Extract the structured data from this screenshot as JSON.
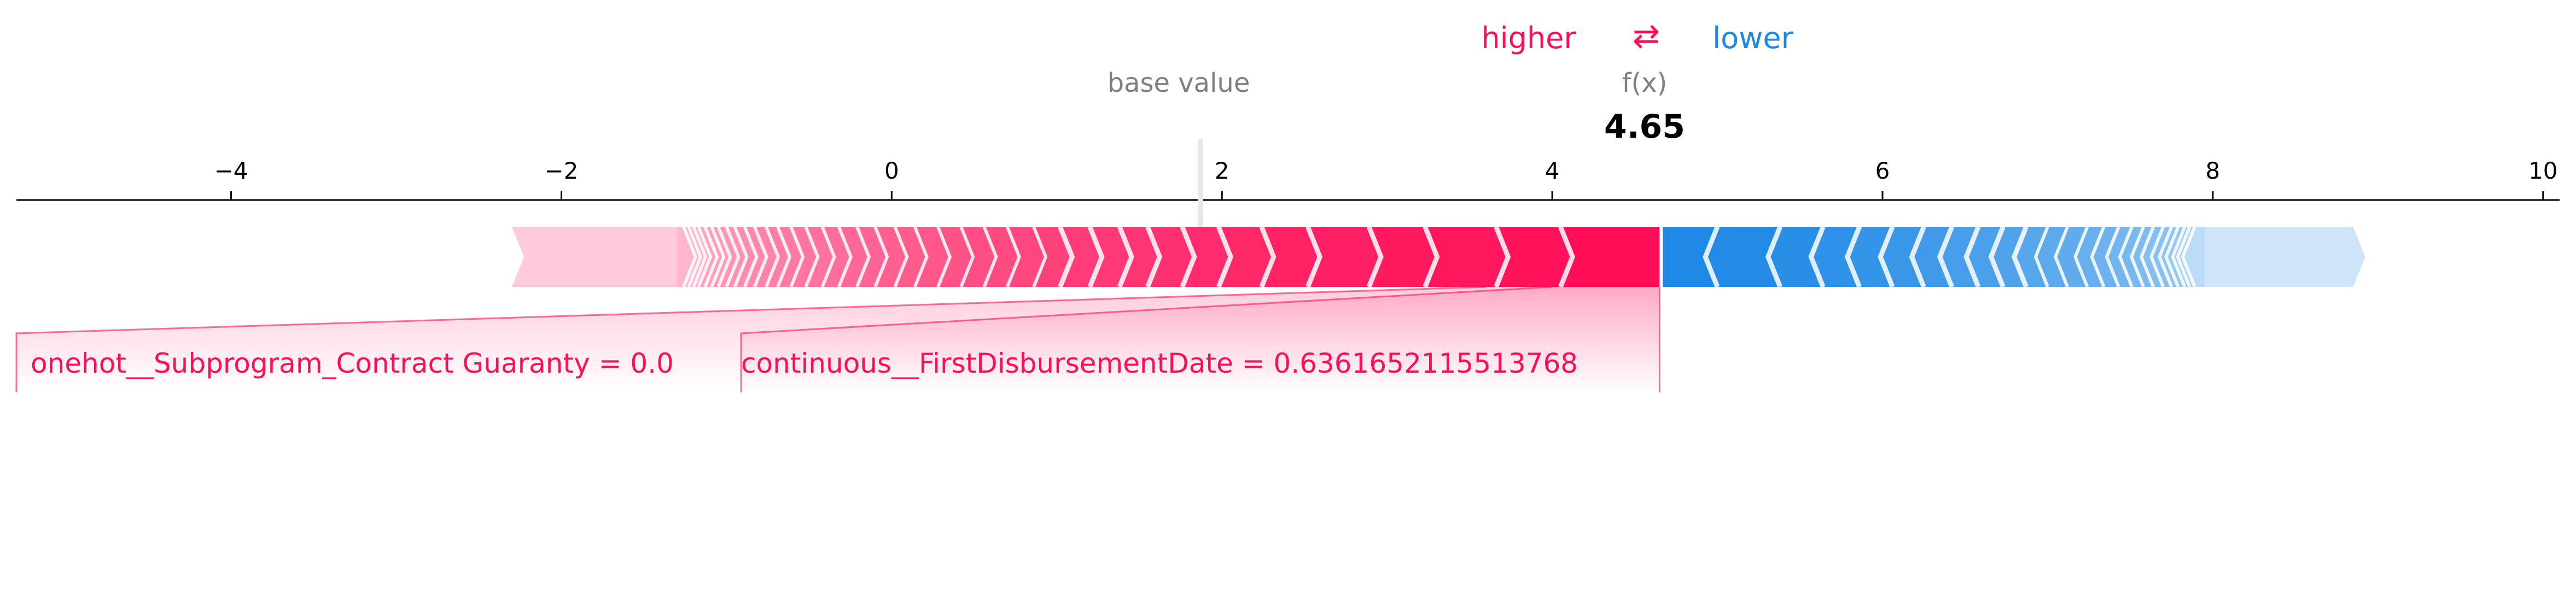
{
  "legend": {
    "higher_label": "higher",
    "arrow_symbol": "⇄",
    "lower_label": "lower",
    "higher_color": "#ff0d57",
    "lower_color": "#1e88e5"
  },
  "header": {
    "base_value_label": "base value",
    "fx_label": "f(x)",
    "fx_value": "4.65"
  },
  "chart_data": {
    "type": "force",
    "base_value": 1.87,
    "output_value": 4.65,
    "xlim": [
      -5.3,
      10.1
    ],
    "ticks": [
      -4,
      -2,
      0,
      2,
      4,
      6,
      8,
      10
    ],
    "tick_labels": [
      "−4",
      "−2",
      "0",
      "2",
      "4",
      "6",
      "8",
      "10"
    ],
    "positive_extent": [
      -2.3,
      4.65
    ],
    "negative_extent": [
      4.65,
      8.85
    ],
    "positive_features": [
      {
        "label": "continuous__FirstDisbursementDate = 0.6361652115513768",
        "start": 4.0,
        "end": 4.65
      },
      {
        "label": "onehot__Subprogram_Contract Guaranty = 0.0",
        "start": 3.6,
        "end": 4.0
      }
    ],
    "positive_boundaries": [
      4.05,
      3.66,
      3.23,
      2.89,
      2.52,
      2.24,
      1.98,
      1.76,
      1.55,
      1.38,
      1.2,
      1.02,
      0.86,
      0.7,
      0.56,
      0.42,
      0.28,
      0.14,
      0.02,
      -0.1,
      -0.21,
      -0.32,
      -0.42,
      -0.52,
      -0.61,
      -0.69,
      -0.76,
      -0.83,
      -0.89,
      -0.95,
      -1.0,
      -1.05,
      -1.09,
      -1.13,
      -1.17,
      -1.2,
      -1.23,
      -1.26
    ],
    "negative_boundaries": [
      5.0,
      5.38,
      5.64,
      5.86,
      6.06,
      6.25,
      6.42,
      6.58,
      6.73,
      6.87,
      7.0,
      7.12,
      7.24,
      7.34,
      7.43,
      7.51,
      7.58,
      7.64,
      7.7,
      7.75,
      7.79,
      7.83,
      7.86,
      7.89
    ],
    "positive_fade_start": -1.3,
    "negative_fade_start": 7.95
  }
}
